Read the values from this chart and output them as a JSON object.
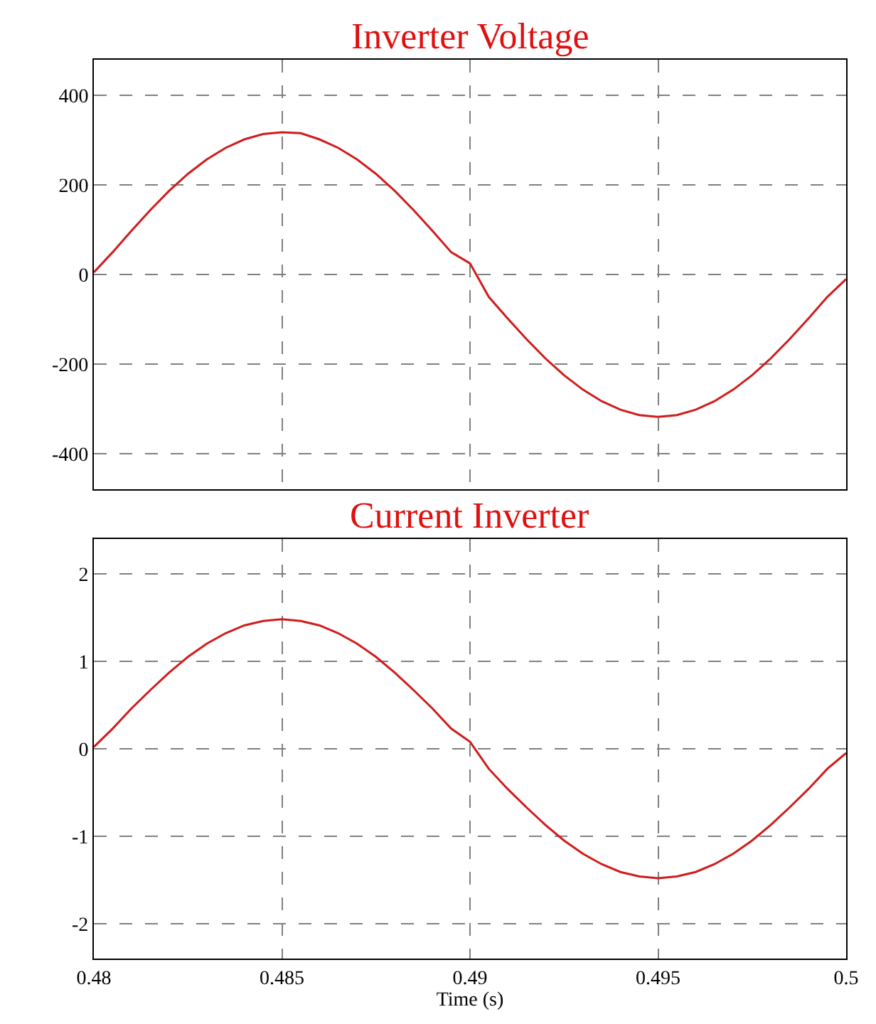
{
  "chart_data": [
    {
      "type": "line",
      "title": "Inverter Voltage",
      "x": [
        0.48,
        0.4805,
        0.481,
        0.4815,
        0.482,
        0.4825,
        0.483,
        0.4835,
        0.484,
        0.4845,
        0.485,
        0.4855,
        0.486,
        0.4865,
        0.487,
        0.4875,
        0.488,
        0.4885,
        0.489,
        0.4895,
        0.49,
        0.4905,
        0.491,
        0.4915,
        0.492,
        0.4925,
        0.493,
        0.4935,
        0.494,
        0.4945,
        0.495,
        0.4955,
        0.496,
        0.4965,
        0.497,
        0.4975,
        0.498,
        0.4985,
        0.499,
        0.4995,
        0.5
      ],
      "series": [
        {
          "color": "#d01c1c",
          "values": [
            5,
            50,
            98,
            144,
            187,
            225,
            257,
            283,
            302,
            314,
            318,
            316,
            302,
            283,
            257,
            225,
            187,
            144,
            98,
            50,
            25,
            -50,
            -98,
            -144,
            -187,
            -225,
            -257,
            -283,
            -302,
            -314,
            -318,
            -314,
            -302,
            -283,
            -257,
            -225,
            -187,
            -144,
            -98,
            -50,
            -10
          ]
        }
      ],
      "xlim": [
        0.48,
        0.5
      ],
      "xticks": [
        0.48,
        0.485,
        0.49,
        0.495,
        0.5
      ],
      "ylim": [
        -480,
        480
      ],
      "yticks": [
        -400,
        -200,
        0,
        200,
        400
      ],
      "grid": true,
      "line_style": "solid",
      "tick_labels": "y"
    },
    {
      "type": "line",
      "title": "Current Inverter",
      "xlabel": "Time (s)",
      "x": [
        0.48,
        0.4805,
        0.481,
        0.4815,
        0.482,
        0.4825,
        0.483,
        0.4835,
        0.484,
        0.4845,
        0.485,
        0.4855,
        0.486,
        0.4865,
        0.487,
        0.4875,
        0.488,
        0.4885,
        0.489,
        0.4895,
        0.49,
        0.4905,
        0.491,
        0.4915,
        0.492,
        0.4925,
        0.493,
        0.4935,
        0.494,
        0.4945,
        0.495,
        0.4955,
        0.496,
        0.4965,
        0.497,
        0.4975,
        0.498,
        0.4985,
        0.499,
        0.4995,
        0.5
      ],
      "series": [
        {
          "color": "#d01c1c",
          "values": [
            0.02,
            0.23,
            0.46,
            0.67,
            0.87,
            1.05,
            1.2,
            1.32,
            1.41,
            1.46,
            1.48,
            1.46,
            1.41,
            1.32,
            1.2,
            1.05,
            0.87,
            0.67,
            0.46,
            0.23,
            0.08,
            -0.23,
            -0.46,
            -0.67,
            -0.87,
            -1.05,
            -1.2,
            -1.32,
            -1.41,
            -1.46,
            -1.48,
            -1.46,
            -1.41,
            -1.32,
            -1.2,
            -1.05,
            -0.87,
            -0.67,
            -0.46,
            -0.23,
            -0.05
          ]
        }
      ],
      "xlim": [
        0.48,
        0.5
      ],
      "xticks": [
        0.48,
        0.485,
        0.49,
        0.495,
        0.5
      ],
      "ylim": [
        -2.4,
        2.4
      ],
      "yticks": [
        -2,
        -1,
        0,
        1,
        2
      ],
      "grid": true,
      "line_style": "solid"
    }
  ]
}
